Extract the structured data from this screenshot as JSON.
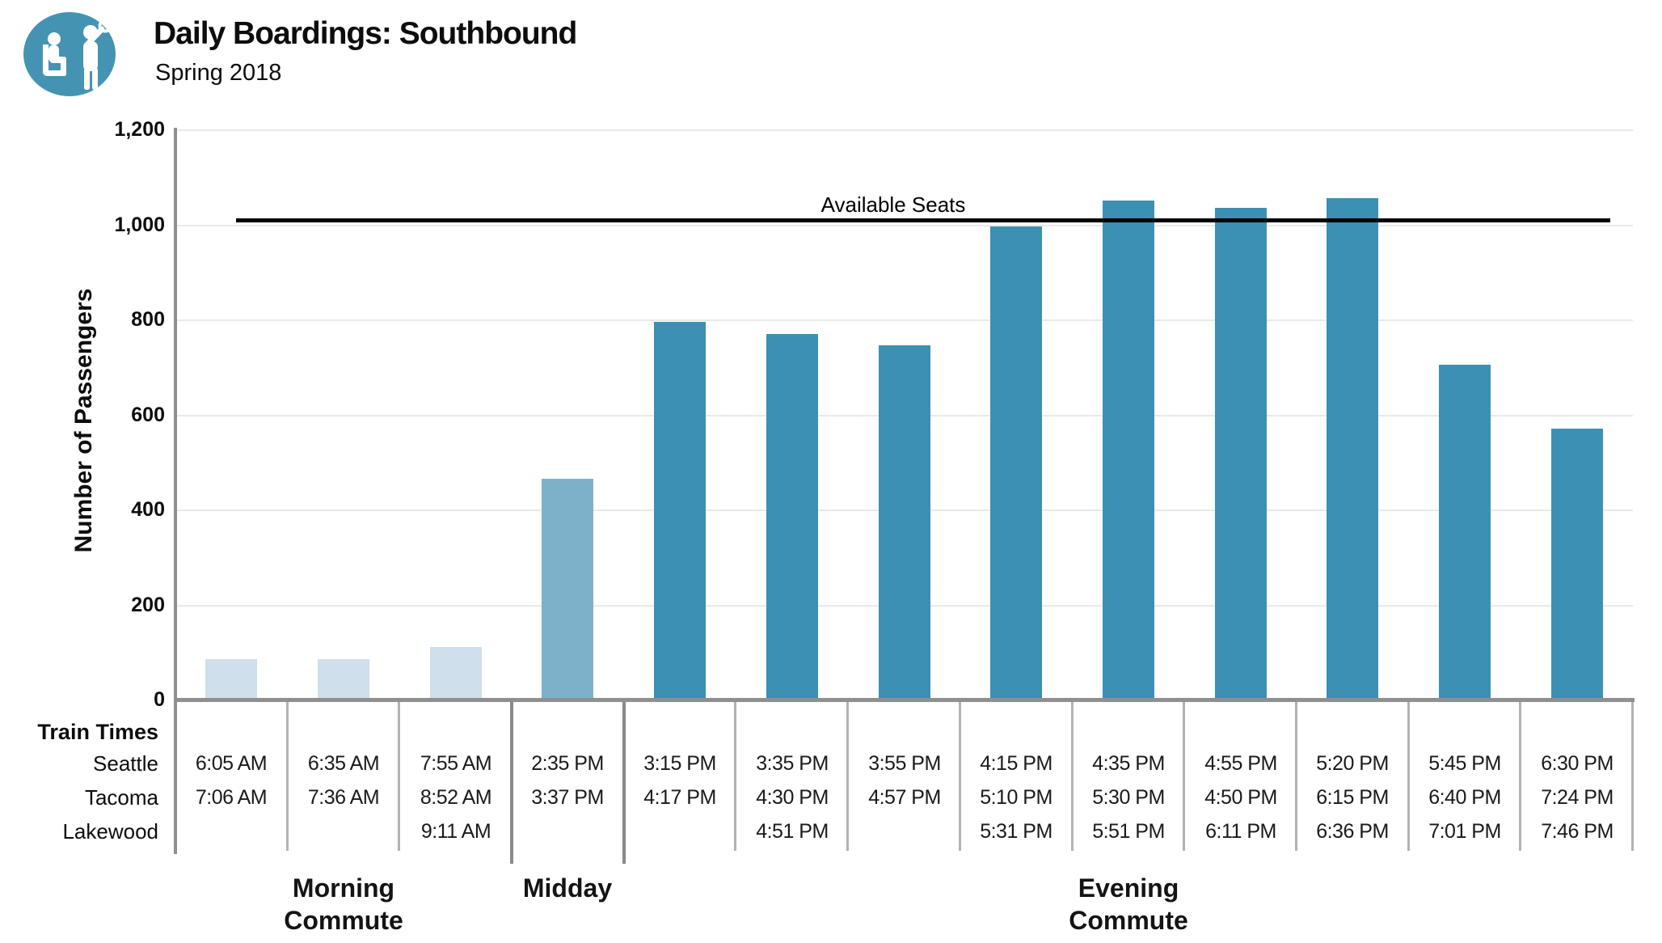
{
  "header": {
    "title": "Daily Boardings: Southbound",
    "subtitle": "Spring 2018",
    "logo_icon": "transit-rider-icon",
    "logo_color": "#4493b3"
  },
  "chart_data": {
    "type": "bar",
    "title": "Daily Boardings: Southbound",
    "subtitle": "Spring 2018",
    "ylabel": "Number of Passengers",
    "xlabel": "",
    "ylim": [
      0,
      1200
    ],
    "ytick_step": 200,
    "ytick_labels": [
      "0",
      "200",
      "400",
      "600",
      "800",
      "1,000",
      "1,200"
    ],
    "grid": true,
    "reference_line": {
      "label": "Available Seats",
      "value": 1010,
      "color": "#000000"
    },
    "periods": {
      "morning": {
        "label": "Morning Commute",
        "color": "#cfdfeb"
      },
      "midday": {
        "label": "Midday",
        "color": "#7db1ca"
      },
      "evening": {
        "label": "Evening Commute",
        "color": "#3c90b2"
      }
    },
    "x_table": {
      "header": "Train Times",
      "row_labels": [
        "Seattle",
        "Tacoma",
        "Lakewood"
      ]
    },
    "bars": [
      {
        "period": "morning",
        "value": 85,
        "times": [
          "6:05 AM",
          "7:06 AM",
          ""
        ]
      },
      {
        "period": "morning",
        "value": 85,
        "times": [
          "6:35 AM",
          "7:36 AM",
          ""
        ]
      },
      {
        "period": "morning",
        "value": 110,
        "times": [
          "7:55 AM",
          "8:52 AM",
          "9:11 AM"
        ]
      },
      {
        "period": "midday",
        "value": 465,
        "times": [
          "2:35 PM",
          "3:37 PM",
          ""
        ]
      },
      {
        "period": "evening",
        "value": 795,
        "times": [
          "3:15 PM",
          "4:17 PM",
          ""
        ]
      },
      {
        "period": "evening",
        "value": 770,
        "times": [
          "3:35 PM",
          "4:30 PM",
          "4:51 PM"
        ]
      },
      {
        "period": "evening",
        "value": 745,
        "times": [
          "3:55 PM",
          "4:57 PM",
          ""
        ]
      },
      {
        "period": "evening",
        "value": 995,
        "times": [
          "4:15 PM",
          "5:10 PM",
          "5:31 PM"
        ]
      },
      {
        "period": "evening",
        "value": 1050,
        "times": [
          "4:35 PM",
          "5:30 PM",
          "5:51 PM"
        ]
      },
      {
        "period": "evening",
        "value": 1035,
        "times": [
          "4:55 PM",
          "4:50 PM",
          "6:11 PM"
        ]
      },
      {
        "period": "evening",
        "value": 1055,
        "times": [
          "5:20 PM",
          "6:15 PM",
          "6:36 PM"
        ]
      },
      {
        "period": "evening",
        "value": 705,
        "times": [
          "5:45 PM",
          "6:40 PM",
          "7:01 PM"
        ]
      },
      {
        "period": "evening",
        "value": 570,
        "times": [
          "6:30 PM",
          "7:24 PM",
          "7:46 PM"
        ]
      }
    ],
    "group_spans": [
      {
        "period": "morning",
        "from": 0,
        "to": 2
      },
      {
        "period": "midday",
        "from": 3,
        "to": 3
      },
      {
        "period": "evening",
        "from": 4,
        "to": 12
      }
    ],
    "legend_position": "none"
  }
}
